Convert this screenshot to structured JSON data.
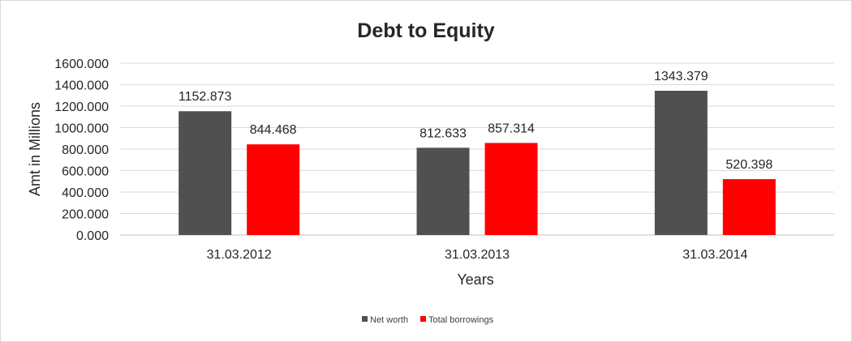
{
  "chart_data": {
    "type": "bar",
    "title": "Debt to Equity",
    "xlabel": "Years",
    "ylabel": "Amt in Millions",
    "categories": [
      "31.03.2012",
      "31.03.2013",
      "31.03.2014"
    ],
    "series": [
      {
        "name": "Net worth",
        "color": "#505050",
        "values": [
          1152.873,
          812.633,
          1343.379
        ],
        "labels": [
          "1152.873",
          "812.633",
          "1343.379"
        ]
      },
      {
        "name": "Total borrowings",
        "color": "#ff0000",
        "values": [
          844.468,
          857.314,
          520.398
        ],
        "labels": [
          "844.468",
          "857.314",
          "520.398"
        ]
      }
    ],
    "ylim": [
      0,
      1600
    ],
    "yticks": [
      0,
      200,
      400,
      600,
      800,
      1000,
      1200,
      1400,
      1600
    ],
    "ytick_labels": [
      "0.000",
      "200.000",
      "400.000",
      "600.000",
      "800.000",
      "1000.000",
      "1200.000",
      "1400.000",
      "1600.000"
    ],
    "grid": true,
    "legend_position": "bottom"
  }
}
